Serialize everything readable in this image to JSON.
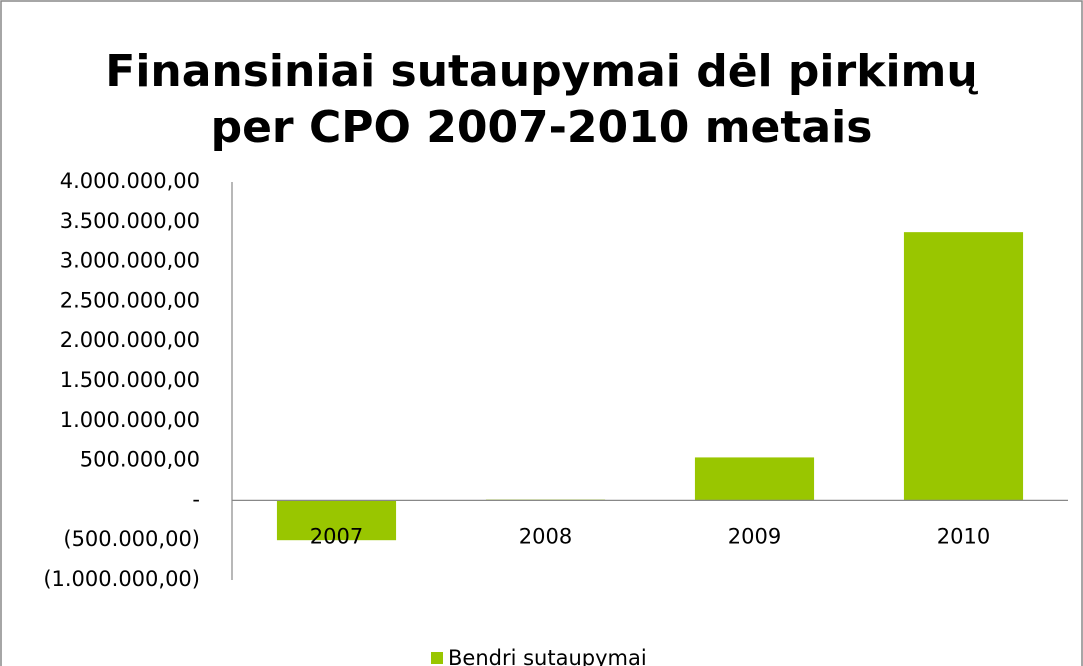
{
  "chart_data": {
    "type": "bar",
    "title": "Finansiniai sutaupymai dėl pirkimų\nper CPO 2007-2010 metais",
    "categories": [
      "2007",
      "2008",
      "2009",
      "2010"
    ],
    "series": [
      {
        "name": "Bendri sutaupymai",
        "color": "#99c600",
        "values": [
          -500000,
          10000,
          540000,
          3370000
        ]
      }
    ],
    "ylim": [
      -1000000,
      4000000
    ],
    "yticks": [
      {
        "value": -1000000,
        "label": "(1.000.000,00)"
      },
      {
        "value": -500000,
        "label": "(500.000,00)"
      },
      {
        "value": 0,
        "label": "-"
      },
      {
        "value": 500000,
        "label": "500.000,00"
      },
      {
        "value": 1000000,
        "label": "1.000.000,00"
      },
      {
        "value": 1500000,
        "label": "1.500.000,00"
      },
      {
        "value": 2000000,
        "label": "2.000.000,00"
      },
      {
        "value": 2500000,
        "label": "2.500.000,00"
      },
      {
        "value": 3000000,
        "label": "3.000.000,00"
      },
      {
        "value": 3500000,
        "label": "3.500.000,00"
      },
      {
        "value": 4000000,
        "label": "4.000.000,00"
      }
    ],
    "grid": false,
    "legend": "bottom"
  }
}
